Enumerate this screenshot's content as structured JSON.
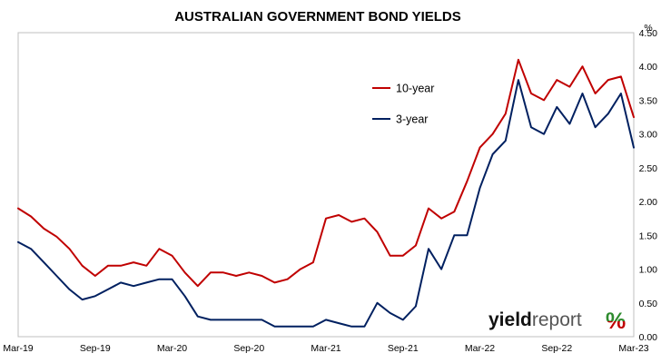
{
  "chart_data": {
    "type": "line",
    "title": "AUSTRALIAN GOVERNMENT BOND YIELDS",
    "unit_label": "%",
    "x_labels": [
      "Mar-19",
      "Sep-19",
      "Mar-20",
      "Sep-20",
      "Mar-21",
      "Sep-21",
      "Mar-22",
      "Sep-22",
      "Mar-23"
    ],
    "x": [
      0,
      1,
      2,
      3,
      4,
      5,
      6,
      7,
      8,
      9,
      10,
      11,
      12,
      13,
      14,
      15,
      16,
      17,
      18,
      19,
      20,
      21,
      22,
      23,
      24,
      25,
      26,
      27,
      28,
      29,
      30,
      31,
      32,
      33,
      34,
      35,
      36,
      37,
      38,
      39,
      40,
      41,
      42,
      43,
      44,
      45,
      46,
      47,
      48
    ],
    "x_unit": "months since Mar-19",
    "ylim": [
      0,
      4.5
    ],
    "y_ticks": [
      "0.00",
      "0.50",
      "1.00",
      "1.50",
      "2.00",
      "2.50",
      "3.00",
      "3.50",
      "4.00",
      "4.50"
    ],
    "grid": false,
    "legend_position": "top-center",
    "series": [
      {
        "name": "10-year",
        "color": "#c00000",
        "values": [
          1.9,
          1.78,
          1.6,
          1.48,
          1.3,
          1.05,
          0.9,
          1.05,
          1.05,
          1.1,
          1.05,
          1.3,
          1.2,
          0.95,
          0.75,
          0.95,
          0.95,
          0.9,
          0.95,
          0.9,
          0.8,
          0.85,
          1.0,
          1.1,
          1.75,
          1.8,
          1.7,
          1.75,
          1.55,
          1.2,
          1.2,
          1.35,
          1.9,
          1.75,
          1.85,
          2.3,
          2.8,
          3.0,
          3.3,
          4.1,
          3.6,
          3.5,
          3.8,
          3.7,
          4.0,
          3.6,
          3.8,
          3.85,
          3.25
        ]
      },
      {
        "name": "3-year",
        "color": "#002060",
        "values": [
          1.4,
          1.3,
          1.1,
          0.9,
          0.7,
          0.55,
          0.6,
          0.7,
          0.8,
          0.75,
          0.8,
          0.85,
          0.85,
          0.6,
          0.3,
          0.25,
          0.25,
          0.25,
          0.25,
          0.25,
          0.15,
          0.15,
          0.15,
          0.15,
          0.25,
          0.2,
          0.15,
          0.15,
          0.5,
          0.35,
          0.25,
          0.45,
          1.3,
          1.0,
          1.5,
          1.5,
          2.2,
          2.7,
          2.9,
          3.8,
          3.1,
          3.0,
          3.4,
          3.15,
          3.6,
          3.1,
          3.3,
          3.6,
          2.8
        ]
      }
    ]
  },
  "watermark": {
    "text_main": "yield",
    "text_sub": "report",
    "symbol": "%",
    "symbol_color_top": "#2e8b2e",
    "symbol_color_bottom": "#c00000"
  }
}
